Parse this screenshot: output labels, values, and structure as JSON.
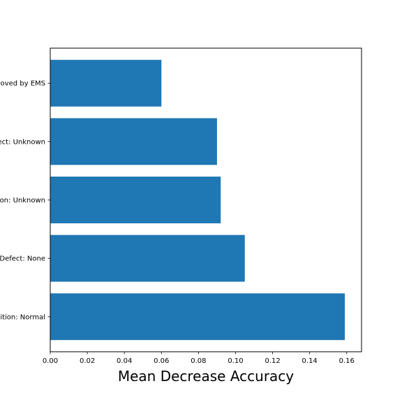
{
  "chart_data": {
    "type": "bar",
    "orientation": "horizontal",
    "title": "",
    "xlabel": "Mean Decrease Accuracy",
    "ylabel": "",
    "categories": [
      "ition: Normal",
      "Defect: None",
      "on: Unknown",
      "ect: Unknown",
      "noved by EMS"
    ],
    "values": [
      0.159,
      0.105,
      0.092,
      0.09,
      0.06
    ],
    "xlim": [
      0.0,
      0.168
    ],
    "xticks": [
      "0.00",
      "0.02",
      "0.04",
      "0.06",
      "0.08",
      "0.10",
      "0.12",
      "0.14",
      "0.16"
    ],
    "grid": false,
    "legend": "none",
    "bar_color": "#1f77b4"
  }
}
